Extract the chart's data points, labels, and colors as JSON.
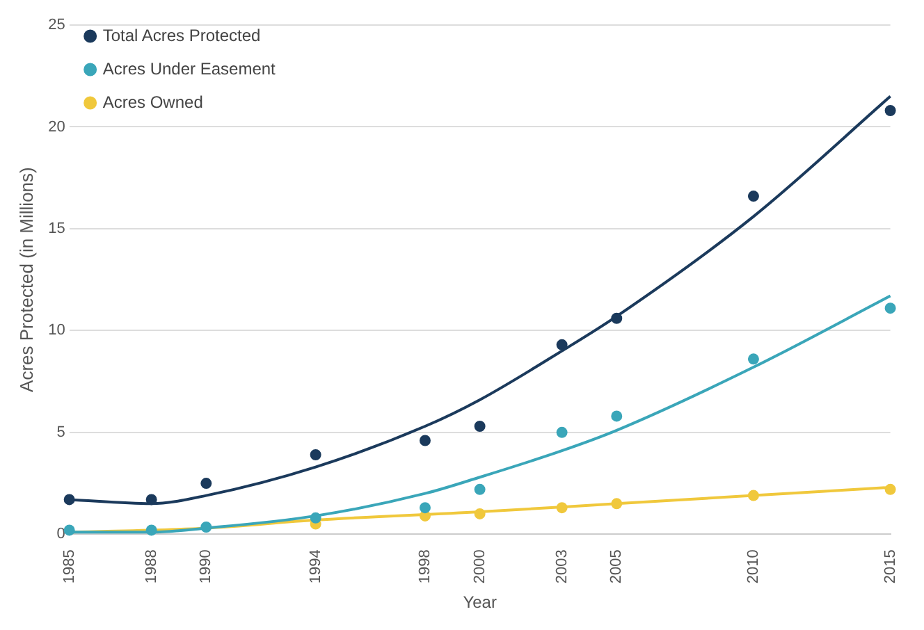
{
  "chart_data": {
    "type": "scatter",
    "xlabel": "Year",
    "ylabel": "Acres Protected (in Millions)",
    "x": [
      1985,
      1988,
      1990,
      1994,
      1998,
      2000,
      2003,
      2005,
      2010,
      2015
    ],
    "series": [
      {
        "name": "Total Acres Protected",
        "color": "#1b3a5c",
        "marker": "circle",
        "values": [
          1.7,
          1.7,
          2.5,
          3.9,
          4.6,
          5.3,
          9.3,
          10.6,
          16.6,
          20.8
        ]
      },
      {
        "name": "Acres Under Easement",
        "color": "#3aa6b9",
        "marker": "circle",
        "values": [
          0.2,
          0.2,
          0.35,
          0.8,
          1.3,
          2.2,
          5.0,
          5.8,
          8.6,
          11.1
        ]
      },
      {
        "name": "Acres Owned",
        "color": "#f0c83c",
        "marker": "circle",
        "values": [
          null,
          null,
          null,
          0.5,
          0.9,
          1.0,
          1.3,
          1.5,
          1.9,
          2.2
        ]
      },
      {
        "type": "line",
        "color": "#1b3a5c",
        "marker": "none",
        "x": [
          1985,
          1988,
          1990,
          1994,
          1998,
          2000,
          2003,
          2005,
          2010,
          2015
        ],
        "values": [
          1.7,
          1.5,
          1.9,
          3.3,
          5.3,
          6.6,
          9.0,
          10.7,
          15.6,
          21.5
        ]
      },
      {
        "type": "line",
        "color": "#3aa6b9",
        "marker": "none",
        "x": [
          1985,
          1988,
          1990,
          1994,
          1998,
          2000,
          2003,
          2005,
          2010,
          2015
        ],
        "values": [
          0.1,
          0.1,
          0.3,
          0.9,
          2.0,
          2.8,
          4.1,
          5.1,
          8.2,
          11.7
        ]
      },
      {
        "type": "line",
        "color": "#f0c83c",
        "marker": "none",
        "x": [
          1985,
          1990,
          1994,
          2000,
          2005,
          2010,
          2015
        ],
        "values": [
          0.1,
          0.3,
          0.7,
          1.1,
          1.5,
          1.9,
          2.3
        ]
      }
    ],
    "xlim": [
      1985,
      2015
    ],
    "xticks": [
      1985,
      1988,
      1990,
      1994,
      1998,
      2000,
      2003,
      2005,
      2010,
      2015
    ],
    "ylim": [
      0,
      25
    ],
    "yticks": [
      0,
      5,
      10,
      15,
      20,
      25
    ],
    "grid": "y",
    "legend": "top left"
  }
}
